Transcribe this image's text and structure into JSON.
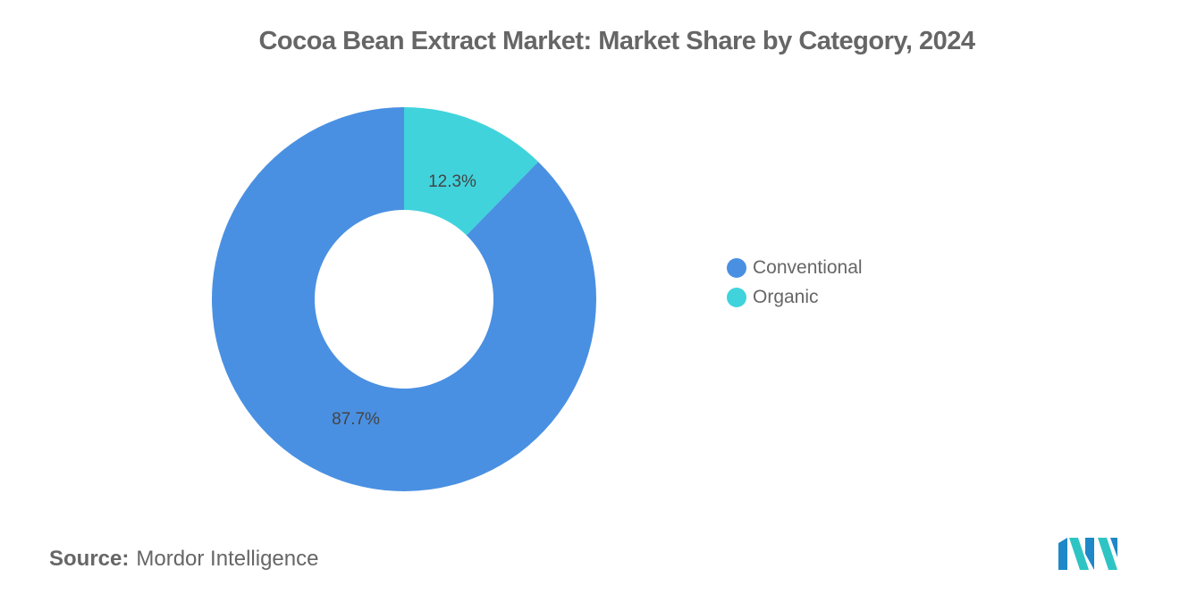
{
  "chart_data": {
    "type": "pie",
    "style": "donut",
    "title": "Cocoa Bean Extract Market: Market Share by Category, 2024",
    "categories": [
      "Conventional",
      "Organic"
    ],
    "values": [
      87.7,
      12.3
    ],
    "labels": [
      "87.7%",
      "12.3%"
    ],
    "colors": [
      "#4A90E2",
      "#40D3DC"
    ],
    "legend_position": "right"
  },
  "source": {
    "label": "Source:",
    "text": "Mordor Intelligence"
  },
  "logo": {
    "icon": "mordor-intelligence-logo"
  }
}
